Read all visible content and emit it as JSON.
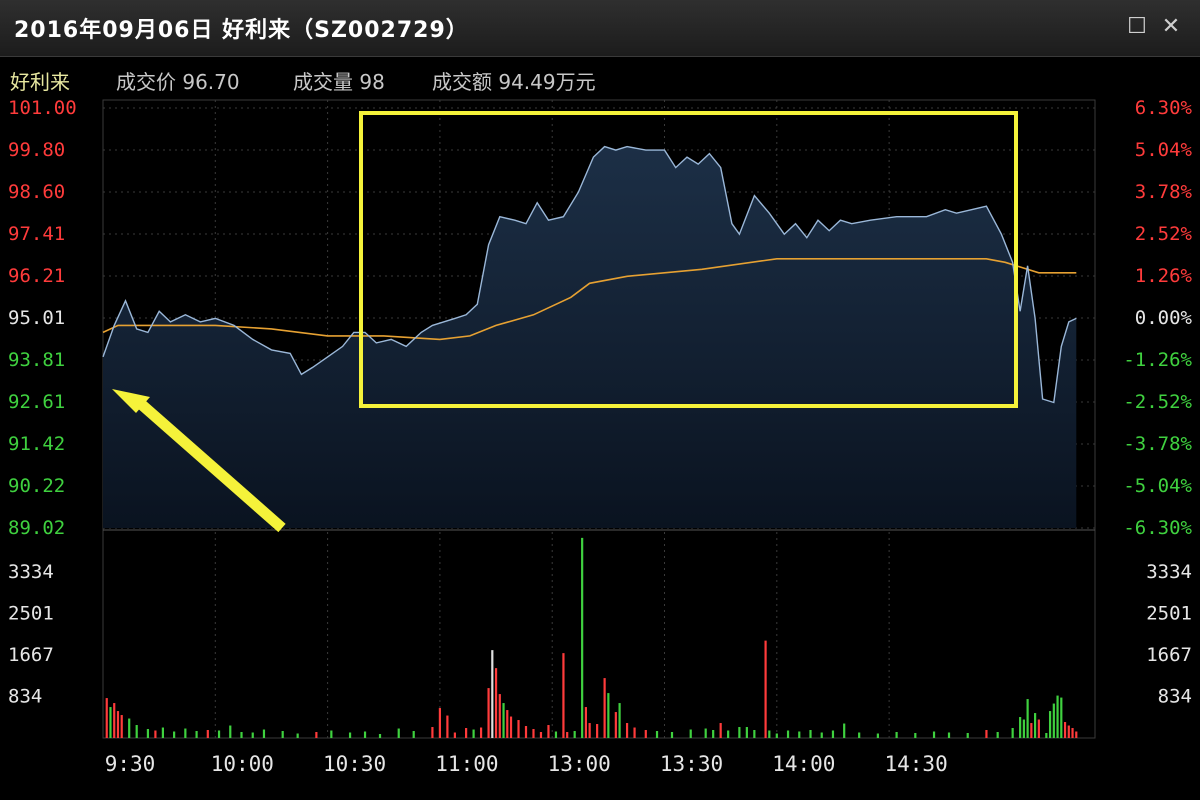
{
  "window": {
    "title": "2016年09月06日  好利来（SZ002729）",
    "restore_icon": "restore-icon",
    "close_icon": "close-icon"
  },
  "info": {
    "name": "好利来",
    "price_label": "成交价",
    "price_value": "96.70",
    "volume_label": "成交量",
    "volume_value": "98",
    "amount_label": "成交额",
    "amount_value": "94.49万元"
  },
  "colors": {
    "up": "#ff3b3b",
    "down": "#3fd13f",
    "neutral": "#e0e0e0",
    "price_line": "#9ab7d8",
    "avg_line": "#e6a132",
    "highlight": "#f5f23a",
    "grid": "#3a3a3a"
  },
  "chart_data": {
    "type": "line",
    "prev_close": 95.01,
    "ylim": [
      89.02,
      101.0
    ],
    "price_ticks_left": [
      "101.00",
      "99.80",
      "98.60",
      "97.41",
      "96.21",
      "95.01",
      "93.81",
      "92.61",
      "91.42",
      "90.22",
      "89.02"
    ],
    "pct_ticks_right": [
      "6.30%",
      "5.04%",
      "3.78%",
      "2.52%",
      "1.26%",
      "0.00%",
      "-1.26%",
      "-2.52%",
      "-3.78%",
      "-5.04%",
      "-6.30%"
    ],
    "volume_ticks": [
      "3334",
      "2501",
      "1667",
      "834"
    ],
    "volume_max": 4167,
    "time_labels": [
      "9:30",
      "10:00",
      "10:30",
      "11:00",
      "13:00",
      "13:30",
      "14:00",
      "14:30"
    ],
    "series": [
      {
        "key": "price",
        "points": [
          [
            0,
            93.9
          ],
          [
            3,
            94.8
          ],
          [
            6,
            95.5
          ],
          [
            9,
            94.7
          ],
          [
            12,
            94.6
          ],
          [
            15,
            95.2
          ],
          [
            18,
            94.9
          ],
          [
            22,
            95.1
          ],
          [
            26,
            94.9
          ],
          [
            30,
            95.0
          ],
          [
            35,
            94.8
          ],
          [
            40,
            94.4
          ],
          [
            45,
            94.1
          ],
          [
            50,
            94.0
          ],
          [
            53,
            93.4
          ],
          [
            56,
            93.6
          ],
          [
            60,
            93.9
          ],
          [
            64,
            94.2
          ],
          [
            67,
            94.6
          ],
          [
            70,
            94.6
          ],
          [
            73,
            94.3
          ],
          [
            77,
            94.4
          ],
          [
            81,
            94.2
          ],
          [
            85,
            94.6
          ],
          [
            88,
            94.8
          ],
          [
            91,
            94.9
          ],
          [
            94,
            95.0
          ],
          [
            97,
            95.1
          ],
          [
            100,
            95.4
          ],
          [
            103,
            97.1
          ],
          [
            106,
            97.9
          ],
          [
            110,
            97.8
          ],
          [
            113,
            97.7
          ],
          [
            116,
            98.3
          ],
          [
            119,
            97.8
          ],
          [
            123,
            97.9
          ],
          [
            127,
            98.6
          ],
          [
            131,
            99.6
          ],
          [
            134,
            99.9
          ],
          [
            137,
            99.8
          ],
          [
            140,
            99.9
          ],
          [
            145,
            99.8
          ],
          [
            150,
            99.8
          ],
          [
            153,
            99.3
          ],
          [
            156,
            99.6
          ],
          [
            159,
            99.4
          ],
          [
            162,
            99.7
          ],
          [
            165,
            99.3
          ],
          [
            168,
            97.7
          ],
          [
            170,
            97.4
          ],
          [
            174,
            98.5
          ],
          [
            178,
            98.0
          ],
          [
            182,
            97.4
          ],
          [
            185,
            97.7
          ],
          [
            188,
            97.3
          ],
          [
            191,
            97.8
          ],
          [
            194,
            97.5
          ],
          [
            197,
            97.8
          ],
          [
            200,
            97.7
          ],
          [
            205,
            97.8
          ],
          [
            212,
            97.9
          ],
          [
            220,
            97.9
          ],
          [
            225,
            98.1
          ],
          [
            228,
            98.0
          ],
          [
            232,
            98.1
          ],
          [
            236,
            98.2
          ],
          [
            240,
            97.4
          ],
          [
            243,
            96.6
          ],
          [
            245,
            95.2
          ],
          [
            247,
            96.5
          ],
          [
            249,
            95.0
          ],
          [
            251,
            92.7
          ],
          [
            254,
            92.6
          ],
          [
            256,
            94.2
          ],
          [
            258,
            94.9
          ],
          [
            260,
            95.0
          ]
        ]
      },
      {
        "key": "average",
        "points": [
          [
            0,
            94.6
          ],
          [
            4,
            94.8
          ],
          [
            10,
            94.8
          ],
          [
            20,
            94.8
          ],
          [
            30,
            94.8
          ],
          [
            45,
            94.7
          ],
          [
            60,
            94.5
          ],
          [
            75,
            94.5
          ],
          [
            90,
            94.4
          ],
          [
            98,
            94.5
          ],
          [
            105,
            94.8
          ],
          [
            115,
            95.1
          ],
          [
            125,
            95.6
          ],
          [
            130,
            96.0
          ],
          [
            140,
            96.2
          ],
          [
            160,
            96.4
          ],
          [
            180,
            96.7
          ],
          [
            200,
            96.7
          ],
          [
            220,
            96.7
          ],
          [
            230,
            96.7
          ],
          [
            236,
            96.7
          ],
          [
            241,
            96.6
          ],
          [
            250,
            96.3
          ],
          [
            260,
            96.3
          ]
        ]
      }
    ],
    "volume": [
      [
        1,
        800,
        "up"
      ],
      [
        2,
        620,
        "down"
      ],
      [
        3,
        700,
        "up"
      ],
      [
        4,
        540,
        "up"
      ],
      [
        5,
        460,
        "up"
      ],
      [
        7,
        390,
        "down"
      ],
      [
        9,
        260,
        "down"
      ],
      [
        12,
        180,
        "down"
      ],
      [
        14,
        150,
        "up"
      ],
      [
        16,
        210,
        "down"
      ],
      [
        19,
        130,
        "down"
      ],
      [
        22,
        190,
        "down"
      ],
      [
        25,
        140,
        "down"
      ],
      [
        28,
        160,
        "up"
      ],
      [
        31,
        150,
        "down"
      ],
      [
        34,
        250,
        "down"
      ],
      [
        37,
        120,
        "down"
      ],
      [
        40,
        110,
        "down"
      ],
      [
        43,
        170,
        "down"
      ],
      [
        48,
        140,
        "down"
      ],
      [
        52,
        90,
        "down"
      ],
      [
        57,
        120,
        "up"
      ],
      [
        61,
        150,
        "down"
      ],
      [
        66,
        110,
        "down"
      ],
      [
        70,
        130,
        "down"
      ],
      [
        74,
        80,
        "down"
      ],
      [
        79,
        190,
        "down"
      ],
      [
        83,
        140,
        "down"
      ],
      [
        88,
        220,
        "up"
      ],
      [
        90,
        600,
        "up"
      ],
      [
        92,
        450,
        "up"
      ],
      [
        94,
        110,
        "up"
      ],
      [
        97,
        200,
        "up"
      ],
      [
        99,
        170,
        "down"
      ],
      [
        101,
        210,
        "up"
      ],
      [
        103,
        1000,
        "up"
      ],
      [
        104,
        1760,
        "neutral"
      ],
      [
        105,
        1400,
        "up"
      ],
      [
        106,
        880,
        "up"
      ],
      [
        107,
        700,
        "down"
      ],
      [
        108,
        560,
        "up"
      ],
      [
        109,
        430,
        "up"
      ],
      [
        111,
        360,
        "up"
      ],
      [
        113,
        240,
        "up"
      ],
      [
        115,
        180,
        "up"
      ],
      [
        117,
        120,
        "up"
      ],
      [
        119,
        260,
        "up"
      ],
      [
        121,
        130,
        "down"
      ],
      [
        123,
        1700,
        "up"
      ],
      [
        124,
        120,
        "up"
      ],
      [
        126,
        140,
        "down"
      ],
      [
        128,
        4010,
        "down"
      ],
      [
        129,
        620,
        "up"
      ],
      [
        130,
        300,
        "up"
      ],
      [
        132,
        280,
        "up"
      ],
      [
        134,
        1200,
        "up"
      ],
      [
        135,
        900,
        "down"
      ],
      [
        137,
        520,
        "up"
      ],
      [
        138,
        700,
        "down"
      ],
      [
        140,
        300,
        "up"
      ],
      [
        142,
        210,
        "up"
      ],
      [
        145,
        160,
        "up"
      ],
      [
        148,
        140,
        "down"
      ],
      [
        152,
        120,
        "down"
      ],
      [
        157,
        170,
        "down"
      ],
      [
        161,
        190,
        "down"
      ],
      [
        163,
        160,
        "down"
      ],
      [
        165,
        300,
        "up"
      ],
      [
        167,
        150,
        "down"
      ],
      [
        170,
        220,
        "down"
      ],
      [
        172,
        220,
        "down"
      ],
      [
        174,
        160,
        "down"
      ],
      [
        177,
        1950,
        "up"
      ],
      [
        178,
        150,
        "down"
      ],
      [
        180,
        90,
        "down"
      ],
      [
        183,
        150,
        "down"
      ],
      [
        186,
        130,
        "down"
      ],
      [
        189,
        160,
        "down"
      ],
      [
        192,
        110,
        "down"
      ],
      [
        195,
        150,
        "down"
      ],
      [
        198,
        290,
        "down"
      ],
      [
        202,
        110,
        "down"
      ],
      [
        207,
        90,
        "down"
      ],
      [
        212,
        120,
        "down"
      ],
      [
        217,
        100,
        "down"
      ],
      [
        222,
        130,
        "down"
      ],
      [
        226,
        110,
        "down"
      ],
      [
        231,
        100,
        "down"
      ],
      [
        236,
        160,
        "up"
      ],
      [
        239,
        120,
        "down"
      ],
      [
        243,
        200,
        "down"
      ],
      [
        245,
        420,
        "down"
      ],
      [
        246,
        370,
        "down"
      ],
      [
        247,
        780,
        "down"
      ],
      [
        248,
        300,
        "up"
      ],
      [
        249,
        500,
        "down"
      ],
      [
        250,
        370,
        "up"
      ],
      [
        252,
        100,
        "down"
      ],
      [
        253,
        540,
        "down"
      ],
      [
        254,
        690,
        "down"
      ],
      [
        255,
        850,
        "down"
      ],
      [
        256,
        810,
        "down"
      ],
      [
        257,
        320,
        "up"
      ],
      [
        258,
        250,
        "up"
      ],
      [
        259,
        200,
        "up"
      ],
      [
        260,
        130,
        "up"
      ]
    ]
  }
}
